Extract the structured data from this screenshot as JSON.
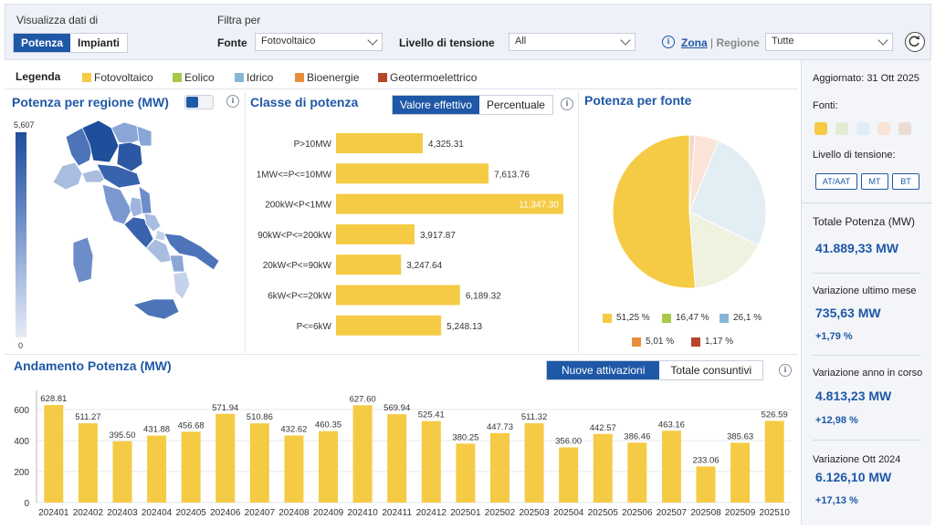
{
  "filters": {
    "view_label": "Visualizza dati di",
    "view_options": [
      "Potenza",
      "Impianti"
    ],
    "filter_label": "Filtra per",
    "fonte_label": "Fonte",
    "fonte_value": "Fotovoltaico",
    "tensione_label": "Livello di tensione",
    "tensione_value": "All",
    "zona_label": "Zona",
    "regione_label": "Regione",
    "separator": "|",
    "regione_value": "Tutte"
  },
  "legend": {
    "title": "Legenda",
    "items": [
      {
        "label": "Fotovoltaico",
        "color": "#f5cb45"
      },
      {
        "label": "Eolico",
        "color": "#a7c84a"
      },
      {
        "label": "Idrico",
        "color": "#86b7d6"
      },
      {
        "label": "Bioenergie",
        "color": "#e88e3b"
      },
      {
        "label": "Geotermoelettrico",
        "color": "#b5462a"
      }
    ]
  },
  "map_panel": {
    "title": "Potenza per regione (MW)",
    "scale_max": "5,607",
    "scale_min": "0"
  },
  "class_panel": {
    "title": "Classe di potenza",
    "toggle": [
      "Valore effettivo",
      "Percentuale"
    ]
  },
  "pie_panel": {
    "title": "Potenza per fonte",
    "legend": [
      {
        "label": "51,25 %",
        "color": "#f5cb45"
      },
      {
        "label": "16,47 %",
        "color": "#a7c84a"
      },
      {
        "label": "26,1 %",
        "color": "#86b7d6"
      },
      {
        "label": "5,01 %",
        "color": "#e88e3b"
      },
      {
        "label": "1,17 %",
        "color": "#b5462a"
      }
    ]
  },
  "trend_panel": {
    "title": "Andamento Potenza (MW)",
    "toggle": [
      "Nuove attivazioni",
      "Totale consuntivi"
    ]
  },
  "sidebar": {
    "updated": "Aggiornato: 31 Ott 2025",
    "fonti_label": "Fonti:",
    "fonti_colors": [
      "#f5cb45",
      "#e3ecd3",
      "#e1edf4",
      "#f8e5d5",
      "#ecdcd6"
    ],
    "tensione_label": "Livello di tensione:",
    "tensione_buttons": [
      "AT/AAT",
      "MT",
      "BT"
    ],
    "total_label": "Totale Potenza (MW)",
    "total_value": "41.889,33 MW",
    "month_label": "Variazione ultimo mese",
    "month_value": "735,63 MW",
    "month_pct": "+1,79 %",
    "year_label": "Variazione anno in corso",
    "year_value": "4.813,23 MW",
    "year_pct": "+12,98 %",
    "prev_label": "Variazione Ott 2024",
    "prev_value": "6.126,10 MW",
    "prev_pct": "+17,13 %"
  },
  "chart_data": [
    {
      "type": "bar",
      "orientation": "horizontal",
      "title": "Classe di potenza",
      "categories": [
        "P>10MW",
        "1MW<=P<=10MW",
        "200kW<P<1MW",
        "90kW<P<=200kW",
        "20kW<P<=90kW",
        "6kW<P<=20kW",
        "P<=6kW"
      ],
      "values": [
        4325.31,
        7613.76,
        11347.3,
        3917.87,
        3247.64,
        6189.32,
        5248.13
      ],
      "value_labels": [
        "4,325.31",
        "7,613.76",
        "11,347.30",
        "3,917.87",
        "3,247.64",
        "6,189.32",
        "5,248.13"
      ],
      "color": "#f5cb45"
    },
    {
      "type": "pie",
      "title": "Potenza per fonte",
      "categories": [
        "Fotovoltaico",
        "Eolico",
        "Idrico",
        "Bioenergie",
        "Geotermoelettrico"
      ],
      "values": [
        51.25,
        16.47,
        26.1,
        5.01,
        1.17
      ],
      "colors": [
        "#f5cb45",
        "#eef2df",
        "#e2edf4",
        "#f9e4d7",
        "#f1d7cf"
      ]
    },
    {
      "type": "bar",
      "title": "Andamento Potenza (MW)",
      "categories": [
        "202401",
        "202402",
        "202403",
        "202404",
        "202405",
        "202406",
        "202407",
        "202408",
        "202409",
        "202410",
        "202411",
        "202412",
        "202501",
        "202502",
        "202503",
        "202504",
        "202505",
        "202506",
        "202507",
        "202508",
        "202509",
        "202510"
      ],
      "values": [
        628.81,
        511.27,
        395.5,
        431.88,
        456.68,
        571.94,
        510.86,
        432.62,
        460.35,
        627.6,
        569.94,
        525.41,
        380.25,
        447.73,
        511.32,
        356.0,
        442.57,
        386.46,
        463.16,
        233.06,
        385.63,
        526.59
      ],
      "value_labels": [
        "628.81",
        "511.27",
        "395.50",
        "431.88",
        "456.68",
        "571.94",
        "510.86",
        "432.62",
        "460.35",
        "627.60",
        "569.94",
        "525.41",
        "380.25",
        "447.73",
        "511.32",
        "356.00",
        "442.57",
        "386.46",
        "463.16",
        "233.06",
        "385.63",
        "526.59"
      ],
      "yticks": [
        "0",
        "200",
        "400",
        "600"
      ],
      "ylim": [
        0,
        700
      ],
      "color": "#f5cb45"
    }
  ]
}
